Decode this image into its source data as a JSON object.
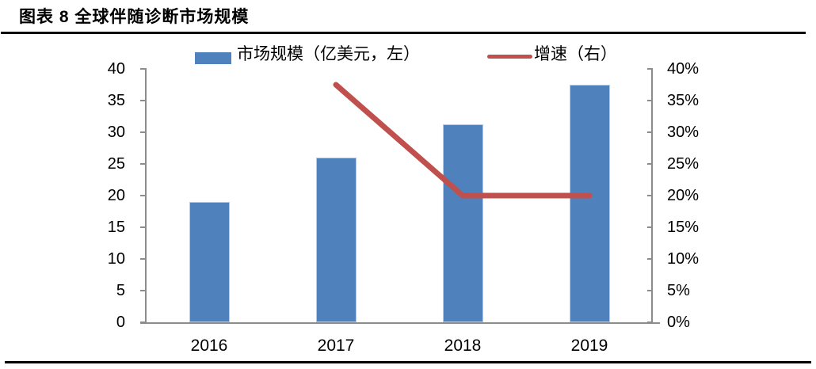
{
  "title": {
    "text": "图表 8 全球伴随诊断市场规模"
  },
  "legend": {
    "items": [
      {
        "label": "市场规模（亿美元，左）",
        "swatch": "bar-swatch"
      },
      {
        "label": "增速（右）",
        "swatch": "line-swatch"
      }
    ]
  },
  "colors": {
    "bar": "#4f81bd",
    "line": "#c0504d",
    "axis": "#8c8c8c",
    "text": "#000000",
    "rule": "#000000"
  },
  "chart_data": {
    "type": "bar",
    "title": "图表 8 全球伴随诊断市场规模",
    "categories": [
      "2016",
      "2017",
      "2018",
      "2019"
    ],
    "series": [
      {
        "name": "市场规模（亿美元，左）",
        "kind": "bar",
        "axis": "left",
        "values": [
          19,
          26,
          31.3,
          37.5
        ]
      },
      {
        "name": "增速（右）",
        "kind": "line",
        "axis": "right",
        "unit": "%",
        "values": [
          null,
          37.5,
          20,
          20
        ]
      }
    ],
    "left_axis": {
      "min": 0,
      "max": 40,
      "step": 5,
      "tick_labels": [
        "0",
        "5",
        "10",
        "15",
        "20",
        "25",
        "30",
        "35",
        "40"
      ]
    },
    "right_axis": {
      "min": 0,
      "max": 40,
      "step": 5,
      "suffix": "%",
      "tick_labels": [
        "0%",
        "5%",
        "10%",
        "15%",
        "20%",
        "25%",
        "30%",
        "35%",
        "40%"
      ]
    },
    "grid": false,
    "legend_position": "top"
  }
}
